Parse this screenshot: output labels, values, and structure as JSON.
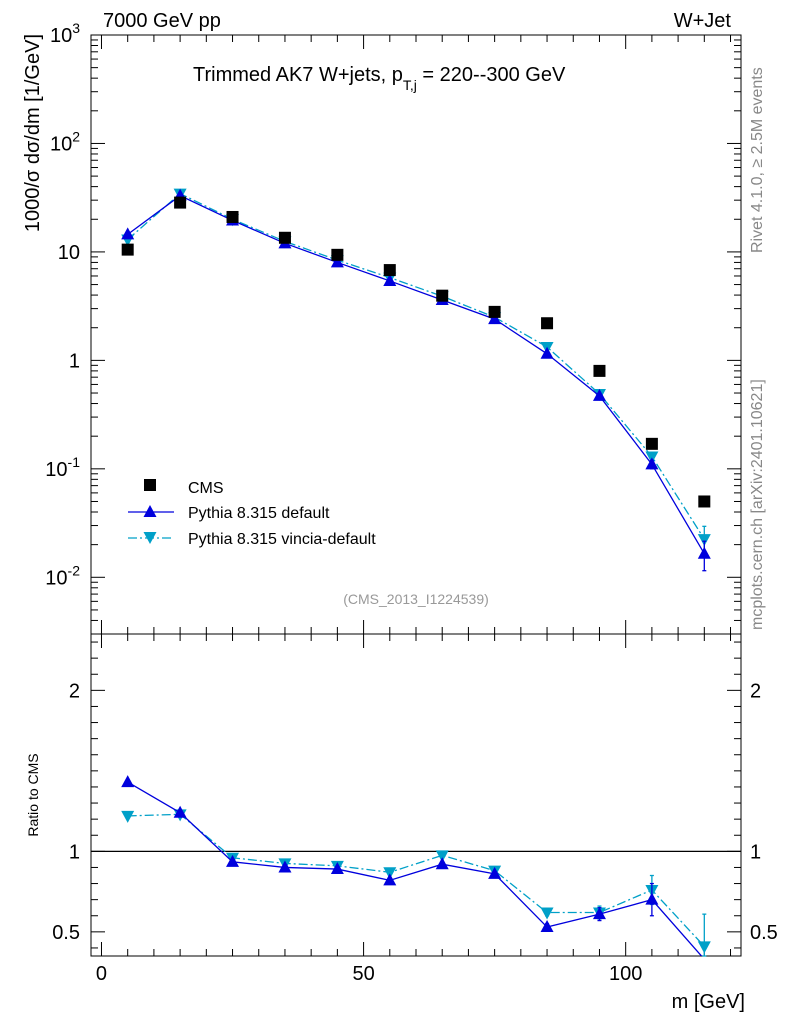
{
  "header": {
    "energy_label": "7000 GeV pp",
    "process_label": "W+Jet",
    "side_label_rivet": "Rivet 4.1.0, ≥ 2.5M events",
    "side_label_mcplots": "mcplots.cern.ch [arXiv:2401.10621]"
  },
  "chart_data": [
    {
      "type": "scatter",
      "title_main": "Trimmed AK7 W+jets, p",
      "title_sub": "T,j",
      "title_range": " = 220--300 GeV",
      "analysis_id": "(CMS_2013_I1224539)",
      "ylabel": "1000/σ  dσ/dm [1/GeV]",
      "yscale": "log",
      "ylim": [
        0.003,
        1000
      ],
      "xlim": [
        -2,
        122
      ],
      "y_ticks": [
        {
          "value": 0.01,
          "base": "10",
          "exp": "-2"
        },
        {
          "value": 0.1,
          "base": "10",
          "exp": "-1"
        },
        {
          "value": 1,
          "base": "1",
          "exp": ""
        },
        {
          "value": 10,
          "base": "10",
          "exp": ""
        },
        {
          "value": 100,
          "base": "10",
          "exp": "2"
        },
        {
          "value": 1000,
          "base": "10",
          "exp": "3"
        }
      ],
      "x": [
        5,
        15,
        25,
        35,
        45,
        55,
        65,
        75,
        85,
        95,
        105,
        115
      ],
      "series": [
        {
          "name": "CMS",
          "color": "#000000",
          "marker": "square",
          "line": "none",
          "values": [
            10.5,
            28.5,
            21.0,
            13.5,
            9.4,
            6.8,
            3.95,
            2.8,
            2.2,
            0.8,
            0.17,
            0.05
          ],
          "errors": [
            0,
            0,
            0,
            0,
            0,
            0,
            0,
            0,
            0,
            0,
            0,
            0
          ]
        },
        {
          "name": "Pythia 8.315 default",
          "color": "#0000dd",
          "marker": "triangle-up",
          "line": "solid",
          "values": [
            14.5,
            33.0,
            19.5,
            12.0,
            8.0,
            5.4,
            3.6,
            2.4,
            1.15,
            0.47,
            0.11,
            0.0165
          ],
          "errors": [
            0,
            0,
            0,
            0,
            0,
            0,
            0,
            0,
            0,
            0,
            0.01,
            0.005
          ]
        },
        {
          "name": "Pythia 8.315 vincia-default",
          "color": "#00a0c8",
          "marker": "triangle-down",
          "line": "dashdot",
          "values": [
            13.0,
            34.5,
            20.0,
            12.5,
            8.4,
            5.8,
            3.9,
            2.5,
            1.33,
            0.49,
            0.13,
            0.0225
          ],
          "errors": [
            0,
            0,
            0,
            0,
            0,
            0,
            0,
            0,
            0,
            0,
            0.01,
            0.007
          ]
        }
      ]
    },
    {
      "type": "scatter",
      "ylabel": "Ratio to CMS",
      "xlabel": "m [GeV]",
      "ylim": [
        0.35,
        2.35
      ],
      "xlim": [
        -2,
        122
      ],
      "reference_line": 1,
      "y_ticks": [
        {
          "value": 0.5,
          "label": "0.5"
        },
        {
          "value": 1,
          "label": "1"
        },
        {
          "value": 2,
          "label": "2"
        }
      ],
      "x_ticks": [
        {
          "value": 0,
          "label": "0"
        },
        {
          "value": 50,
          "label": "50"
        },
        {
          "value": 100,
          "label": "100"
        }
      ],
      "x": [
        5,
        15,
        25,
        35,
        45,
        55,
        65,
        75,
        85,
        95,
        105,
        115
      ],
      "series": [
        {
          "name": "Pythia 8.315 default",
          "color": "#0000dd",
          "marker": "triangle-up",
          "line": "solid",
          "values": [
            1.43,
            1.24,
            0.935,
            0.9,
            0.89,
            0.82,
            0.92,
            0.86,
            0.53,
            0.61,
            0.7,
            0.33
          ],
          "errors": [
            0,
            0,
            0,
            0,
            0,
            0,
            0,
            0,
            0.02,
            0.04,
            0.1,
            0
          ]
        },
        {
          "name": "Pythia 8.315 vincia-default",
          "color": "#00a0c8",
          "marker": "triangle-down",
          "line": "dashdot",
          "values": [
            1.22,
            1.23,
            0.96,
            0.925,
            0.91,
            0.87,
            0.975,
            0.88,
            0.62,
            0.62,
            0.76,
            0.41
          ],
          "errors": [
            0,
            0,
            0,
            0,
            0,
            0,
            0,
            0,
            0.02,
            0.04,
            0.09,
            0.2
          ]
        }
      ]
    }
  ]
}
